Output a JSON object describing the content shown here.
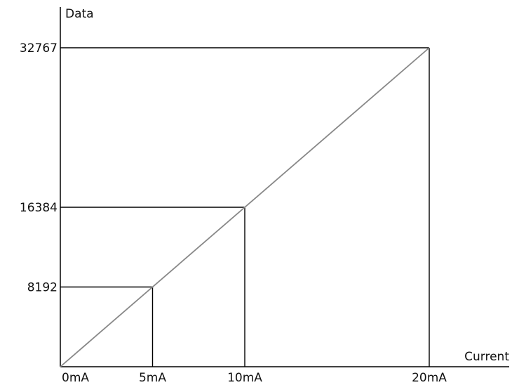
{
  "chart_data": {
    "type": "line",
    "title": "",
    "xlabel": "Current",
    "ylabel": "Data",
    "x_unit": "mA",
    "xlim": [
      0,
      20
    ],
    "ylim": [
      0,
      32767
    ],
    "grid": false,
    "x_tick_values": [
      0,
      5,
      10,
      20
    ],
    "x_tick_labels": [
      "0mA",
      "5mA",
      "10mA",
      "20mA"
    ],
    "y_tick_values": [
      8192,
      16384,
      32767
    ],
    "y_tick_labels": [
      "8192",
      "16384",
      "32767"
    ],
    "series": [
      {
        "x": [
          0,
          20
        ],
        "y": [
          0,
          32767
        ],
        "color": "#888888"
      }
    ],
    "reference_points": [
      {
        "x": 5,
        "y": 8192
      },
      {
        "x": 10,
        "y": 16384
      },
      {
        "x": 20,
        "y": 32767
      }
    ],
    "axis_color": "#000000"
  }
}
